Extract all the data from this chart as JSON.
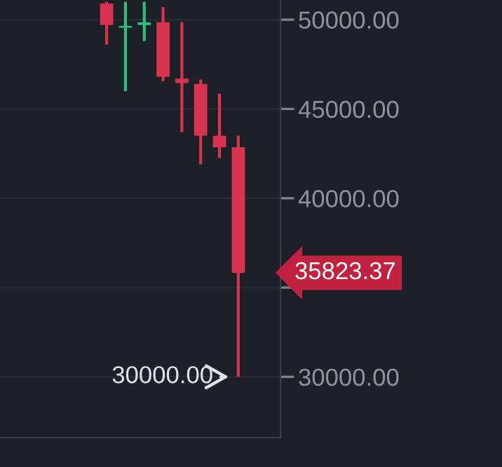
{
  "chart_data": {
    "type": "candlestick",
    "categories": [
      null,
      null,
      null,
      null,
      null,
      null,
      null,
      null
    ],
    "ohlc": [
      [
        50900,
        51000,
        48600,
        49700
      ],
      [
        49550,
        51000,
        46000,
        49650
      ],
      [
        49700,
        51000,
        48800,
        49850
      ],
      [
        49850,
        50700,
        46550,
        46800
      ],
      [
        46700,
        49850,
        43700,
        46450
      ],
      [
        46400,
        46650,
        41900,
        43500
      ],
      [
        43500,
        45850,
        42250,
        42850
      ],
      [
        42850,
        43500,
        30000,
        35823.37
      ]
    ],
    "colors": [
      "#d8334f",
      "#2bc07f",
      "#2bc07f",
      "#d8334f",
      "#d8334f",
      "#d8334f",
      "#d8334f",
      "#d8334f"
    ],
    "ylim": [
      26600,
      51100
    ],
    "yticks": [
      {
        "value": 50000,
        "label": "50000.00"
      },
      {
        "value": 45000,
        "label": "45000.00"
      },
      {
        "value": 40000,
        "label": "40000.00"
      },
      {
        "value": 35000,
        "label": null
      },
      {
        "value": 30000,
        "label": "30000.00"
      }
    ],
    "grid": "y",
    "annotations": [
      "35823.37",
      "30000.00"
    ]
  }
}
